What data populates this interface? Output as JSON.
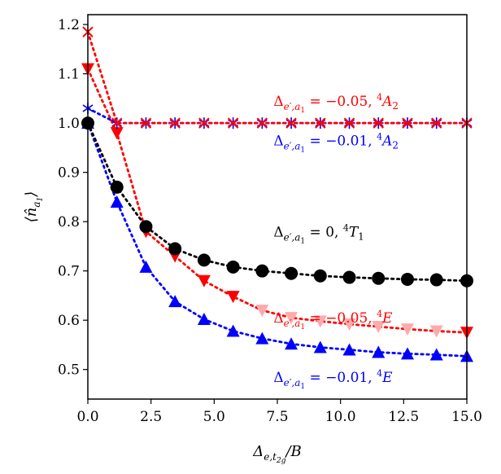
{
  "chart_data": {
    "type": "line",
    "xlabel": "Δe,t2g/B",
    "ylabel": "⟨n̂a1⟩",
    "xlim": [
      0.0,
      15.0
    ],
    "ylim": [
      0.44,
      1.22
    ],
    "xticks": [
      "0.0",
      "2.5",
      "5.0",
      "7.5",
      "10.0",
      "12.5",
      "15.0"
    ],
    "xtick_values": [
      0.0,
      2.5,
      5.0,
      7.5,
      10.0,
      12.5,
      15.0
    ],
    "yticks": [
      "0.5",
      "0.6",
      "0.7",
      "0.8",
      "0.9",
      "1.0",
      "1.1",
      "1.2"
    ],
    "ytick_values": [
      0.5,
      0.6,
      0.7,
      0.8,
      0.9,
      1.0,
      1.1,
      1.2
    ],
    "grid": false,
    "x": [
      0.0,
      1.15,
      2.3,
      3.45,
      4.6,
      5.75,
      6.9,
      8.05,
      9.2,
      10.35,
      11.5,
      12.65,
      13.8,
      15.0
    ],
    "series": [
      {
        "name": "Δe′,a1 = −0.05, 4A2",
        "color": "#ff0000",
        "marker": "x",
        "values": [
          1.185,
          1.0,
          1.0,
          1.0,
          1.0,
          1.0,
          1.0,
          1.0,
          1.0,
          1.0,
          1.0,
          1.0,
          1.0,
          1.0
        ]
      },
      {
        "name": "Δe′,a1 = −0.01, 4A2",
        "color": "#0000ff",
        "marker": "star",
        "values": [
          1.03,
          1.0,
          1.0,
          1.0,
          1.0,
          1.0,
          1.0,
          1.0,
          1.0,
          1.0,
          1.0,
          1.0,
          1.0,
          1.0
        ]
      },
      {
        "name": "Δe′,a1 = 0, 4T1",
        "color": "#000000",
        "marker": "circle",
        "values": [
          1.0,
          0.87,
          0.79,
          0.745,
          0.722,
          0.708,
          0.7,
          0.695,
          0.69,
          0.687,
          0.685,
          0.683,
          0.682,
          0.68
        ]
      },
      {
        "name": "Δe′,a1 = −0.05, 4E",
        "color": "#ff0000",
        "marker": "triangle-down",
        "values": [
          1.11,
          0.98,
          0.78,
          0.73,
          0.68,
          0.648,
          0.62,
          0.605,
          0.598,
          0.592,
          0.587,
          0.582,
          0.578,
          0.575
        ]
      },
      {
        "name": "Δe′,a1 = −0.01, 4E",
        "color": "#0000ff",
        "marker": "triangle-up",
        "values": [
          1.0,
          0.84,
          0.708,
          0.638,
          0.602,
          0.578,
          0.563,
          0.552,
          0.545,
          0.54,
          0.535,
          0.532,
          0.53,
          0.527
        ]
      }
    ],
    "annotations": [
      {
        "text": "Δe′,a1 = −0.05, 4A2",
        "color": "#ff0000",
        "x": 7.35,
        "y": 1.035
      },
      {
        "text": "Δe′,a1 = −0.01, 4A2",
        "color": "#0000ff",
        "x": 7.35,
        "y": 0.955
      },
      {
        "text": "Δe′,a1 = 0, 4T1",
        "color": "#000000",
        "x": 7.35,
        "y": 0.77
      },
      {
        "text": "Δe′,a1 = −0.05, 4E",
        "color": "#ff0000",
        "x": 7.35,
        "y": 0.595
      },
      {
        "text": "Δe′,a1 = −0.01, 4E",
        "color": "#0000ff",
        "x": 7.35,
        "y": 0.475
      }
    ]
  }
}
